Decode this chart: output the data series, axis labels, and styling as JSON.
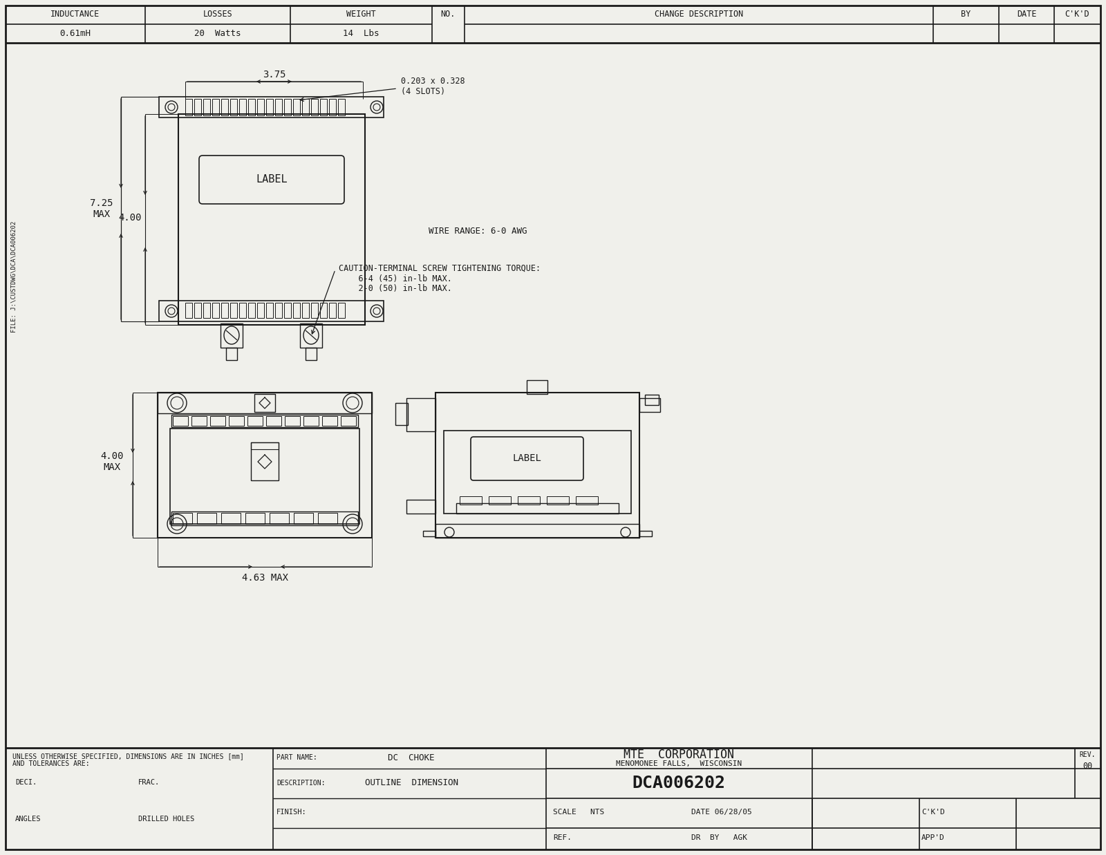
{
  "bg_color": "#f0f0eb",
  "line_color": "#1a1a1a",
  "header": {
    "inductance_label": "INDUCTANCE",
    "inductance_val": "0.61mH",
    "losses_label": "LOSSES",
    "losses_val": "20  Watts",
    "weight_label": "WEIGHT",
    "weight_val": "14  Lbs",
    "no_label": "NO.",
    "change_desc_label": "CHANGE DESCRIPTION",
    "by_label": "BY",
    "date_label": "DATE",
    "ckd_label": "C'K'D"
  },
  "annotations": {
    "dim_375": "3.75",
    "dim_slots": "0.203 x 0.328\n(4 SLOTS)",
    "dim_400_top": "4.00",
    "dim_725": "7.25\nMAX",
    "wire_range": "WIRE RANGE: 6-0 AWG",
    "caution_line1": "CAUTION-TERMINAL SCREW TIGHTENING TORQUE:",
    "caution_line2": "    6-4 (45) in-lb MAX.",
    "caution_line3": "    2-0 (50) in-lb MAX.",
    "dim_400_bot": "4.00\nMAX",
    "dim_463": "4.63 MAX"
  },
  "footer": {
    "unless": "UNLESS OTHERWISE SPECIFIED, DIMENSIONS ARE IN INCHES [mm]",
    "and_tol": "AND TOLERANCES ARE:",
    "deci_label": "DECI.",
    "frac_label": "FRAC.",
    "angles_label": "ANGLES",
    "drilled_label": "DRILLED HOLES",
    "part_name_label": "PART NAME:",
    "part_name_val": "DC  CHOKE",
    "description_label": "DESCRIPTION:",
    "description_val": "OUTLINE  DIMENSION",
    "finish_label": "FINISH:",
    "company": "MTE  CORPORATION",
    "location": "MENOMONEE FALLS,  WISCONSIN",
    "drawing_num": "DCA006202",
    "rev_label": "REV.",
    "rev_val": "00",
    "scale_label": "SCALE   NTS",
    "date_label2": "DATE 06/28/05",
    "ckd_label2": "C'K'D",
    "ref_label": "REF.",
    "dr_by_label": "DR  BY   AGK",
    "appd_label": "APP'D"
  },
  "sidebar_text": "FILE: J:\\CUSTDWG\\DCA\\DCA006202"
}
